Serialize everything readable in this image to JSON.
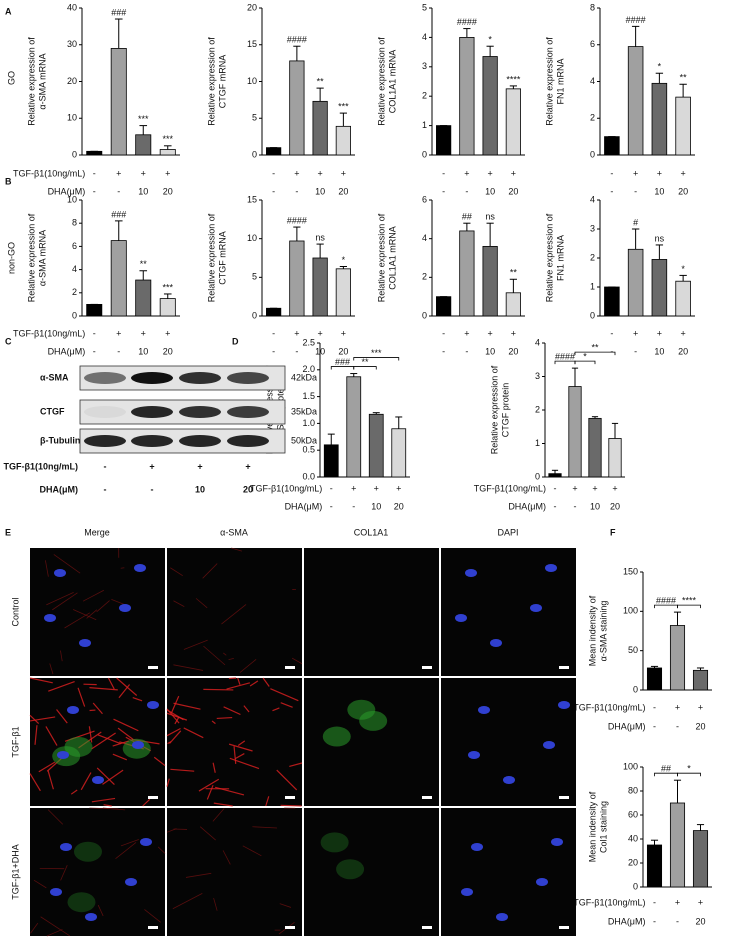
{
  "panels": {
    "letters": [
      "A",
      "B",
      "C",
      "D",
      "E",
      "F"
    ],
    "row_labels": [
      "GO",
      "non-GO"
    ]
  },
  "blot": {
    "rows": [
      {
        "label": "α-SMA",
        "size": "42kDa"
      },
      {
        "label": "CTGF",
        "size": "35kDa"
      },
      {
        "label": "β-Tubulin",
        "size": "50kDa"
      }
    ],
    "conditions": [
      {
        "name": "TGF-β1(10ng/mL)",
        "values": [
          "-",
          "+",
          "+",
          "+"
        ]
      },
      {
        "name": "DHA(μM)",
        "values": [
          "-",
          "-",
          "10",
          "20"
        ]
      }
    ]
  },
  "images": {
    "columns": [
      "Merge",
      "α-SMA",
      "COL1A1",
      "DAPI"
    ],
    "rows": [
      "Control",
      "TGF-β1",
      "TGF-β1+DHA"
    ]
  },
  "chart_data": [
    {
      "type": "bar",
      "ylabel": [
        "Relative expression of",
        "α-SMA mRNA"
      ],
      "values": [
        1,
        29,
        5.5,
        1.5
      ],
      "errors": [
        0,
        8,
        2.5,
        1
      ],
      "colors": [
        "#000000",
        "#a0a0a0",
        "#6a6a6a",
        "#d9d9d9"
      ],
      "ylim": [
        0,
        40
      ],
      "yticks": [
        0,
        10,
        20,
        30,
        40
      ],
      "annotations": [
        null,
        "###",
        "***",
        "***"
      ],
      "conditions": [
        {
          "name": "TGF-β1(10ng/mL)",
          "values": [
            "-",
            "+",
            "+",
            "+"
          ]
        },
        {
          "name": "DHA(μM)",
          "values": [
            "-",
            "-",
            "10",
            "20"
          ]
        }
      ]
    },
    {
      "type": "bar",
      "ylabel": [
        "Relative expression of",
        "CTGF mRNA"
      ],
      "values": [
        1,
        12.8,
        7.3,
        3.9
      ],
      "errors": [
        0,
        2,
        1.8,
        1.8
      ],
      "colors": [
        "#000000",
        "#a0a0a0",
        "#6a6a6a",
        "#d9d9d9"
      ],
      "ylim": [
        0,
        20
      ],
      "yticks": [
        0,
        5,
        10,
        15,
        20
      ],
      "annotations": [
        null,
        "####",
        "**",
        "***"
      ],
      "conditions": [
        {
          "values": [
            "-",
            "+",
            "+",
            "+"
          ]
        },
        {
          "values": [
            "-",
            "-",
            "10",
            "20"
          ]
        }
      ]
    },
    {
      "type": "bar",
      "ylabel": [
        "Relative expression of",
        "COL1A1 mRNA"
      ],
      "values": [
        1,
        4.0,
        3.35,
        2.25
      ],
      "errors": [
        0,
        0.3,
        0.35,
        0.1
      ],
      "colors": [
        "#000000",
        "#a0a0a0",
        "#6a6a6a",
        "#d9d9d9"
      ],
      "ylim": [
        0,
        5
      ],
      "yticks": [
        0,
        1,
        2,
        3,
        4,
        5
      ],
      "annotations": [
        null,
        "####",
        "*",
        "****"
      ],
      "conditions": [
        {
          "values": [
            "-",
            "+",
            "+",
            "+"
          ]
        },
        {
          "values": [
            "-",
            "-",
            "10",
            "20"
          ]
        }
      ]
    },
    {
      "type": "bar",
      "ylabel": [
        "Relative expression of",
        "FN1 mRNA"
      ],
      "values": [
        1,
        5.9,
        3.9,
        3.15
      ],
      "errors": [
        0,
        1.1,
        0.55,
        0.7
      ],
      "colors": [
        "#000000",
        "#a0a0a0",
        "#6a6a6a",
        "#d9d9d9"
      ],
      "ylim": [
        0,
        8
      ],
      "yticks": [
        0,
        2,
        4,
        6,
        8
      ],
      "annotations": [
        null,
        "####",
        "*",
        "**"
      ],
      "conditions": [
        {
          "values": [
            "-",
            "+",
            "+",
            "+"
          ]
        },
        {
          "values": [
            "-",
            "-",
            "10",
            "20"
          ]
        }
      ]
    },
    {
      "type": "bar",
      "ylabel": [
        "Relative expression of",
        "α-SMA mRNA"
      ],
      "values": [
        1,
        6.5,
        3.1,
        1.5
      ],
      "errors": [
        0,
        1.7,
        0.8,
        0.4
      ],
      "colors": [
        "#000000",
        "#a0a0a0",
        "#6a6a6a",
        "#d9d9d9"
      ],
      "ylim": [
        0,
        10
      ],
      "yticks": [
        0,
        2,
        4,
        6,
        8,
        10
      ],
      "annotations": [
        null,
        "###",
        "**",
        "***"
      ],
      "conditions": [
        {
          "name": "TGF-β1(10ng/mL)",
          "values": [
            "-",
            "+",
            "+",
            "+"
          ]
        },
        {
          "name": "DHA(μM)",
          "values": [
            "-",
            "-",
            "10",
            "20"
          ]
        }
      ]
    },
    {
      "type": "bar",
      "ylabel": [
        "Relative expression of",
        "CTGF mRNA"
      ],
      "values": [
        1,
        9.7,
        7.5,
        6.1
      ],
      "errors": [
        0,
        1.8,
        1.8,
        0.3
      ],
      "colors": [
        "#000000",
        "#a0a0a0",
        "#6a6a6a",
        "#d9d9d9"
      ],
      "ylim": [
        0,
        15
      ],
      "yticks": [
        0,
        5,
        10,
        15
      ],
      "annotations": [
        null,
        "####",
        "ns",
        "*"
      ],
      "conditions": [
        {
          "values": [
            "-",
            "+",
            "+",
            "+"
          ]
        },
        {
          "values": [
            "-",
            "-",
            "10",
            "20"
          ]
        }
      ]
    },
    {
      "type": "bar",
      "ylabel": [
        "Relative expression of",
        "COL1A1 mRNA"
      ],
      "values": [
        1,
        4.4,
        3.6,
        1.2
      ],
      "errors": [
        0,
        0.4,
        1.2,
        0.7
      ],
      "colors": [
        "#000000",
        "#a0a0a0",
        "#6a6a6a",
        "#d9d9d9"
      ],
      "ylim": [
        0,
        6
      ],
      "yticks": [
        0,
        2,
        4,
        6
      ],
      "annotations": [
        null,
        "##",
        "ns",
        "**"
      ],
      "conditions": [
        {
          "values": [
            "-",
            "+",
            "+",
            "+"
          ]
        },
        {
          "values": [
            "-",
            "-",
            "10",
            "20"
          ]
        }
      ]
    },
    {
      "type": "bar",
      "ylabel": [
        "Relative expression of",
        "FN1 mRNA"
      ],
      "values": [
        1,
        2.3,
        1.95,
        1.2
      ],
      "errors": [
        0,
        0.7,
        0.5,
        0.2
      ],
      "colors": [
        "#000000",
        "#a0a0a0",
        "#6a6a6a",
        "#d9d9d9"
      ],
      "ylim": [
        0,
        4
      ],
      "yticks": [
        0,
        1,
        2,
        3,
        4
      ],
      "annotations": [
        null,
        "#",
        "ns",
        "*"
      ],
      "conditions": [
        {
          "values": [
            "-",
            "+",
            "+",
            "+"
          ]
        },
        {
          "values": [
            "-",
            "-",
            "10",
            "20"
          ]
        }
      ]
    },
    {
      "type": "bar",
      "ylabel": [
        "Relative expression of",
        "α-SMA protein"
      ],
      "values": [
        0.6,
        1.87,
        1.17,
        0.9
      ],
      "errors": [
        0.2,
        0.06,
        0.03,
        0.22
      ],
      "colors": [
        "#000000",
        "#a0a0a0",
        "#6a6a6a",
        "#d9d9d9"
      ],
      "ylim": [
        0,
        2.5
      ],
      "yticks": [
        {
          "value": 0,
          "label": "0.0"
        },
        0.5,
        {
          "value": 1,
          "label": "1.0"
        },
        1.5,
        {
          "value": 2,
          "label": "2.0"
        },
        2.5
      ],
      "comparisons": [
        {
          "bars": [
            0,
            1
          ],
          "label": "###"
        },
        {
          "bars": [
            1,
            2
          ],
          "label": "**"
        },
        {
          "bars": [
            1,
            3
          ],
          "label": "***"
        }
      ],
      "conditions": [
        {
          "name": "TGF-β1(10ng/mL)",
          "values": [
            "-",
            "+",
            "+",
            "+"
          ]
        },
        {
          "name": "DHA(μM)",
          "values": [
            "-",
            "-",
            "10",
            "20"
          ]
        }
      ]
    },
    {
      "type": "bar",
      "ylabel": [
        "Relative expression of",
        "CTGF protein"
      ],
      "values": [
        0.1,
        2.7,
        1.75,
        1.15
      ],
      "errors": [
        0.1,
        0.55,
        0.05,
        0.45
      ],
      "colors": [
        "#000000",
        "#a0a0a0",
        "#6a6a6a",
        "#d9d9d9"
      ],
      "ylim": [
        0,
        4
      ],
      "yticks": [
        0,
        1,
        2,
        3,
        4
      ],
      "comparisons": [
        {
          "bars": [
            0,
            1
          ],
          "label": "####"
        },
        {
          "bars": [
            1,
            2
          ],
          "label": "*"
        },
        {
          "bars": [
            1,
            3
          ],
          "label": "**"
        }
      ],
      "conditions": [
        {
          "name": "TGF-β1(10ng/mL)",
          "values": [
            "-",
            "+",
            "+",
            "+"
          ]
        },
        {
          "name": "DHA(μM)",
          "values": [
            "-",
            "-",
            "10",
            "20"
          ]
        }
      ]
    },
    {
      "type": "bar",
      "ylabel": [
        "Mean indensity of",
        "α-SMA staining"
      ],
      "values": [
        28,
        82,
        25
      ],
      "errors": [
        2,
        17,
        3
      ],
      "colors": [
        "#000000",
        "#a0a0a0",
        "#6a6a6a"
      ],
      "ylim": [
        0,
        150
      ],
      "yticks": [
        0,
        50,
        100,
        150
      ],
      "comparisons": [
        {
          "bars": [
            0,
            1
          ],
          "label": "####"
        },
        {
          "bars": [
            1,
            2
          ],
          "label": "****"
        }
      ],
      "conditions": [
        {
          "name": "TGF-β1(10ng/mL)",
          "values": [
            "-",
            "+",
            "+"
          ]
        },
        {
          "name": "DHA(μM)",
          "values": [
            "-",
            "-",
            "20"
          ]
        }
      ]
    },
    {
      "type": "bar",
      "ylabel": [
        "Mean indensity of",
        "Col1 staining"
      ],
      "values": [
        35,
        70,
        47
      ],
      "errors": [
        4,
        19,
        5
      ],
      "colors": [
        "#000000",
        "#a0a0a0",
        "#6a6a6a"
      ],
      "ylim": [
        0,
        100
      ],
      "yticks": [
        0,
        20,
        40,
        60,
        80,
        100
      ],
      "comparisons": [
        {
          "bars": [
            0,
            1
          ],
          "label": "##"
        },
        {
          "bars": [
            1,
            2
          ],
          "label": "*"
        }
      ],
      "conditions": [
        {
          "name": "TGF-β1(10ng/mL)",
          "values": [
            "-",
            "+",
            "+"
          ]
        },
        {
          "name": "DHA(μM)",
          "values": [
            "-",
            "-",
            "20"
          ]
        }
      ]
    }
  ]
}
